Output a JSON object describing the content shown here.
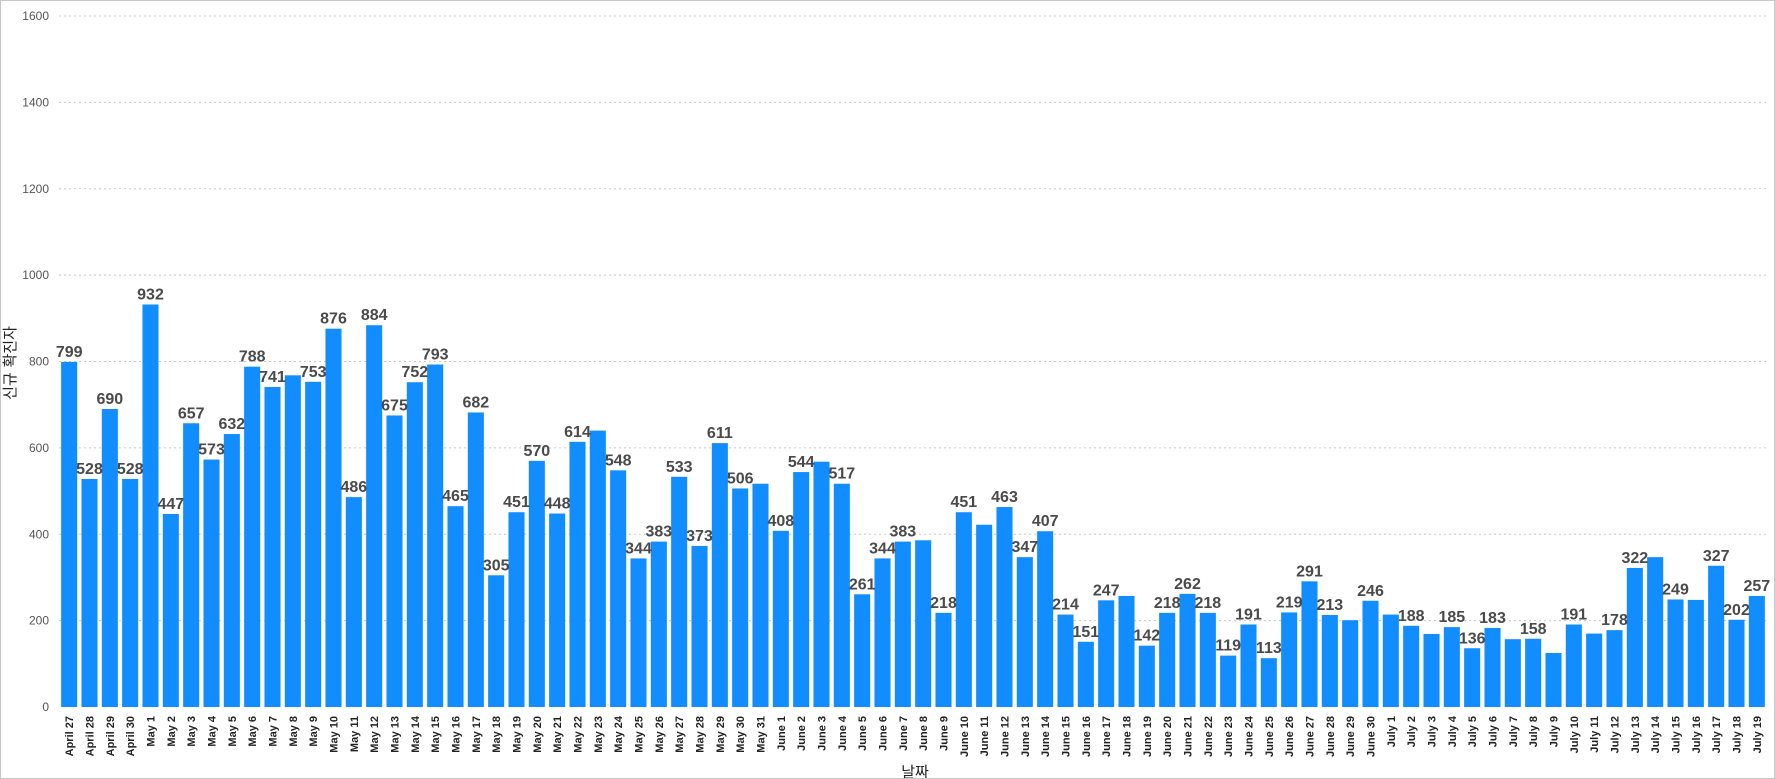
{
  "chart_data": {
    "type": "bar",
    "xlabel": "날짜",
    "ylabel": "신규 확진자",
    "ylim": [
      0,
      1600
    ],
    "yticks": [
      0,
      200,
      400,
      600,
      800,
      1000,
      1200,
      1400,
      1600
    ],
    "grid": "horizontal dotted",
    "bar_color": "#118DFF",
    "categories": [
      "April 27",
      "April 28",
      "April 29",
      "April 30",
      "May 1",
      "May 2",
      "May 3",
      "May 4",
      "May 5",
      "May 6",
      "May 7",
      "May 8",
      "May 9",
      "May 10",
      "May 11",
      "May 12",
      "May 13",
      "May 14",
      "May 15",
      "May 16",
      "May 17",
      "May 18",
      "May 19",
      "May 20",
      "May 21",
      "May 22",
      "May 23",
      "May 24",
      "May 25",
      "May 26",
      "May 27",
      "May 28",
      "May 29",
      "May 30",
      "May 31",
      "June 1",
      "June 2",
      "June 3",
      "June 4",
      "June 5",
      "June 6",
      "June 7",
      "June 8",
      "June 9",
      "June 10",
      "June 11",
      "June 12",
      "June 13",
      "June 14",
      "June 15",
      "June 16",
      "June 17",
      "June 18",
      "June 19",
      "June 20",
      "June 21",
      "June 22",
      "June 23",
      "June 24",
      "June 25",
      "June 26",
      "June 27",
      "June 28",
      "June 29",
      "June 30",
      "July 1",
      "July 2",
      "July 3",
      "July 4",
      "July 5",
      "July 6",
      "July 7",
      "July 8",
      "July 9",
      "July 10",
      "July 11",
      "July 12",
      "July 13",
      "July 14",
      "July 15",
      "July 16",
      "July 17",
      "July 18",
      "July 19"
    ],
    "values": [
      799,
      528,
      690,
      528,
      932,
      447,
      657,
      573,
      632,
      788,
      741,
      768,
      753,
      876,
      486,
      884,
      675,
      752,
      793,
      465,
      682,
      305,
      451,
      570,
      448,
      614,
      640,
      548,
      344,
      383,
      533,
      373,
      611,
      506,
      517,
      408,
      544,
      568,
      517,
      261,
      344,
      383,
      386,
      218,
      451,
      422,
      463,
      347,
      407,
      214,
      151,
      247,
      257,
      142,
      218,
      262,
      218,
      119,
      191,
      113,
      219,
      291,
      213,
      201,
      246,
      214,
      188,
      169,
      185,
      136,
      183,
      157,
      158,
      125,
      191,
      170,
      178,
      322,
      347,
      249,
      248,
      327,
      202,
      257
    ],
    "data_labels": [
      "799",
      "528",
      "690",
      "528",
      "932",
      "447",
      "657",
      "573",
      "632",
      "788",
      "741",
      "",
      "753",
      "876",
      "486",
      "884",
      "675",
      "752",
      "793",
      "465",
      "682",
      "305",
      "451",
      "570",
      "448",
      "614",
      "",
      "548",
      "344",
      "383",
      "533",
      "373",
      "611",
      "506",
      "",
      "408",
      "544",
      "",
      "517",
      "261",
      "344",
      "383",
      "",
      "218",
      "451",
      "",
      "463",
      "347",
      "407",
      "214",
      "151",
      "247",
      "",
      "142",
      "218",
      "262",
      "218",
      "119",
      "191",
      "113",
      "219",
      "291",
      "213",
      "",
      "246",
      "",
      "188",
      "",
      "185",
      "136",
      "183",
      "",
      "158",
      "",
      "191",
      "",
      "178",
      "322",
      "",
      "249",
      "",
      "327",
      "202",
      "257"
    ]
  }
}
